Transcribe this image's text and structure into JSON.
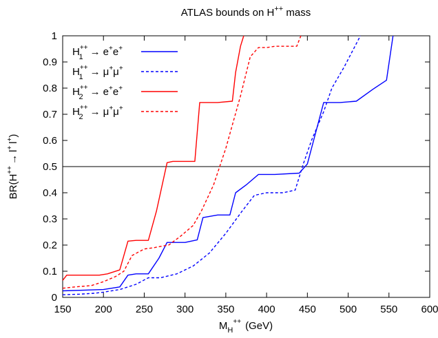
{
  "chart_data": {
    "type": "line",
    "title": "ATLAS bounds on H",
    "title_superscript": "++",
    "title_suffix": " mass",
    "xlabel": {
      "main": "M",
      "sub": "H",
      "sup": "++",
      "unit": "(GeV)"
    },
    "ylabel": {
      "prefix": "BR(H",
      "h_sup": "++",
      "arrow": "→",
      "l": "l",
      "l_sup": "+",
      "l2": "l",
      "l2_sup": "+",
      "suffix": ")"
    },
    "xlim": [
      150,
      600
    ],
    "ylim": [
      0,
      1
    ],
    "xticks": [
      "150",
      "200",
      "250",
      "300",
      "350",
      "400",
      "450",
      "500",
      "550",
      "600"
    ],
    "yticks": [
      "0",
      "0.1",
      "0.2",
      "0.3",
      "0.4",
      "0.5",
      "0.6",
      "0.7",
      "0.8",
      "0.9",
      "1"
    ],
    "xtick_values": [
      150,
      200,
      250,
      300,
      350,
      400,
      450,
      500,
      550,
      600
    ],
    "ytick_values": [
      0,
      0.1,
      0.2,
      0.3,
      0.4,
      0.5,
      0.6,
      0.7,
      0.8,
      0.9,
      1
    ],
    "hline": 0.5,
    "legend_position": "top-left",
    "grid": false,
    "series": [
      {
        "name_base": "H",
        "name_sub": "1",
        "name_sup": "++",
        "name_arrow": "→",
        "name_l1": "e",
        "name_l1_sup": "+",
        "name_l2": "e",
        "name_l2_sup": "+",
        "color": "#0000ff",
        "dash": "solid",
        "x": [
          150,
          200,
          220,
          230,
          240,
          255,
          268,
          278,
          290,
          300,
          315,
          322,
          340,
          355,
          362,
          375,
          390,
          410,
          440,
          450,
          470,
          490,
          510,
          530,
          547,
          555
        ],
        "y": [
          0.025,
          0.03,
          0.04,
          0.085,
          0.09,
          0.09,
          0.15,
          0.21,
          0.21,
          0.21,
          0.22,
          0.305,
          0.315,
          0.315,
          0.4,
          0.43,
          0.47,
          0.47,
          0.475,
          0.51,
          0.745,
          0.745,
          0.75,
          0.795,
          0.83,
          1.0
        ]
      },
      {
        "name_base": "H",
        "name_sub": "1",
        "name_sup": "++",
        "name_arrow": "→",
        "name_l1": "μ",
        "name_l1_sup": "+",
        "name_l2": "μ",
        "name_l2_sup": "+",
        "color": "#0000ff",
        "dash": "dashed",
        "x": [
          150,
          170,
          190,
          200,
          220,
          240,
          255,
          270,
          290,
          310,
          330,
          350,
          370,
          385,
          400,
          420,
          435,
          445,
          455,
          470,
          480,
          495,
          510,
          515
        ],
        "y": [
          0.01,
          0.012,
          0.016,
          0.02,
          0.03,
          0.05,
          0.075,
          0.075,
          0.09,
          0.12,
          0.17,
          0.245,
          0.33,
          0.39,
          0.4,
          0.4,
          0.41,
          0.51,
          0.6,
          0.71,
          0.8,
          0.88,
          0.97,
          1.0
        ]
      },
      {
        "name_base": "H",
        "name_sub": "2",
        "name_sup": "++",
        "name_arrow": "→",
        "name_l1": "e",
        "name_l1_sup": "+",
        "name_l2": "e",
        "name_l2_sup": "+",
        "color": "#ff0000",
        "dash": "solid",
        "x": [
          150,
          155,
          175,
          195,
          205,
          220,
          230,
          240,
          255,
          265,
          278,
          285,
          300,
          312,
          318,
          340,
          358,
          362,
          368,
          372
        ],
        "y": [
          0.065,
          0.085,
          0.085,
          0.085,
          0.09,
          0.105,
          0.215,
          0.218,
          0.218,
          0.33,
          0.515,
          0.52,
          0.52,
          0.52,
          0.745,
          0.745,
          0.75,
          0.86,
          0.96,
          1.0
        ]
      },
      {
        "name_base": "H",
        "name_sub": "2",
        "name_sup": "++",
        "name_arrow": "→",
        "name_l1": "μ",
        "name_l1_sup": "+",
        "name_l2": "μ",
        "name_l2_sup": "+",
        "color": "#ff0000",
        "dash": "dashed",
        "x": [
          150,
          165,
          185,
          200,
          215,
          225,
          235,
          250,
          262,
          270,
          280,
          295,
          310,
          320,
          335,
          350,
          368,
          380,
          390,
          400,
          410,
          425,
          437,
          442
        ],
        "y": [
          0.035,
          0.04,
          0.045,
          0.06,
          0.08,
          0.1,
          0.16,
          0.185,
          0.19,
          0.195,
          0.2,
          0.235,
          0.275,
          0.33,
          0.43,
          0.57,
          0.77,
          0.92,
          0.955,
          0.955,
          0.96,
          0.96,
          0.96,
          1.0
        ]
      }
    ]
  }
}
